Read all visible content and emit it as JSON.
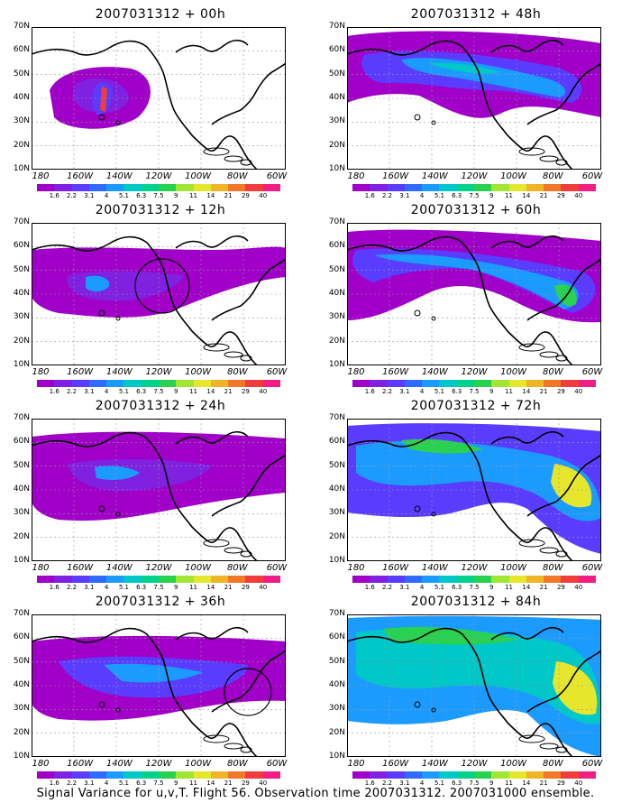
{
  "panels": [
    {
      "title": "2007031312 + 00h"
    },
    {
      "title": "2007031312 + 48h"
    },
    {
      "title": "2007031312 + 12h"
    },
    {
      "title": "2007031312 + 60h"
    },
    {
      "title": "2007031312 + 24h"
    },
    {
      "title": "2007031312 + 72h"
    },
    {
      "title": "2007031312 + 36h"
    },
    {
      "title": "2007031312 + 84h"
    }
  ],
  "lat_labels": [
    "70N",
    "60N",
    "50N",
    "40N",
    "30N",
    "20N",
    "10N"
  ],
  "lon_labels": [
    "180",
    "160W",
    "140W",
    "120W",
    "100W",
    "80W",
    "60W"
  ],
  "colorbar": {
    "ticks": [
      "1.6",
      "2.2",
      "3.1",
      "4",
      "5.1",
      "6.3",
      "7.5",
      "9",
      "11",
      "14",
      "21",
      "29",
      "40"
    ],
    "colors": [
      "#a000c8",
      "#8020e0",
      "#5a3cff",
      "#2f6bff",
      "#1c9bff",
      "#00c8c8",
      "#00d28c",
      "#28d250",
      "#a0e632",
      "#e6e62d",
      "#f0b428",
      "#f07828",
      "#f03c3c",
      "#f01e82"
    ]
  },
  "footer": "Signal Variance for u,v,T. Flight 56. Observation time 2007031312. 2007031000 ensemble.",
  "chart_data": {
    "type": "map",
    "region": {
      "lon_range": [
        "170E",
        "60W"
      ],
      "lat_range": [
        10,
        70
      ]
    },
    "variable": "Signal Variance for u,v,T",
    "forecast_hours": [
      0,
      12,
      24,
      36,
      48,
      60,
      72,
      84
    ],
    "contour_levels": [
      1.6,
      2.2,
      3.1,
      4,
      5.1,
      6.3,
      7.5,
      9,
      11,
      14,
      21,
      29,
      40
    ]
  }
}
